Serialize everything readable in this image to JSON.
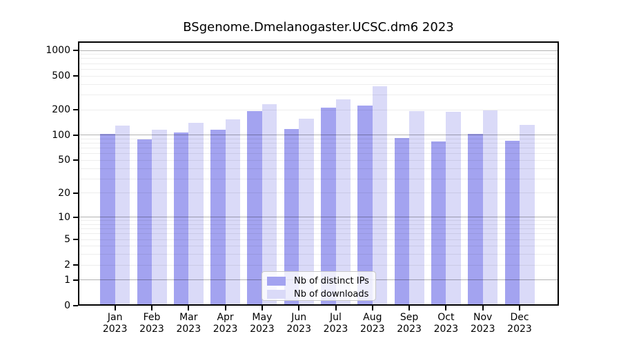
{
  "chart_data": {
    "type": "bar",
    "title": "BSgenome.Dmelanogaster.UCSC.dm6 2023",
    "categories": [
      "Jan",
      "Feb",
      "Mar",
      "Apr",
      "May",
      "Jun",
      "Jul",
      "Aug",
      "Sep",
      "Oct",
      "Nov",
      "Dec"
    ],
    "year_label": "2023",
    "series": [
      {
        "name": "Nb of distinct IPs",
        "color": "#a3a3f0",
        "values": [
          104,
          89,
          108,
          117,
          194,
          118,
          212,
          222,
          93,
          84,
          103,
          85
        ]
      },
      {
        "name": "Nb of downloads",
        "color": "#dadaf8",
        "values": [
          131,
          117,
          140,
          155,
          232,
          158,
          264,
          380,
          192,
          190,
          198,
          133
        ]
      }
    ],
    "yscale": "log1p",
    "yticks": [
      0,
      1,
      2,
      5,
      10,
      20,
      50,
      100,
      200,
      500,
      1000
    ],
    "ylim": [
      0,
      1280
    ],
    "grid": "horizontal log major+minor, drawn over bars",
    "legend_position": "bottom-center-inside",
    "axis_color": "#000000"
  }
}
